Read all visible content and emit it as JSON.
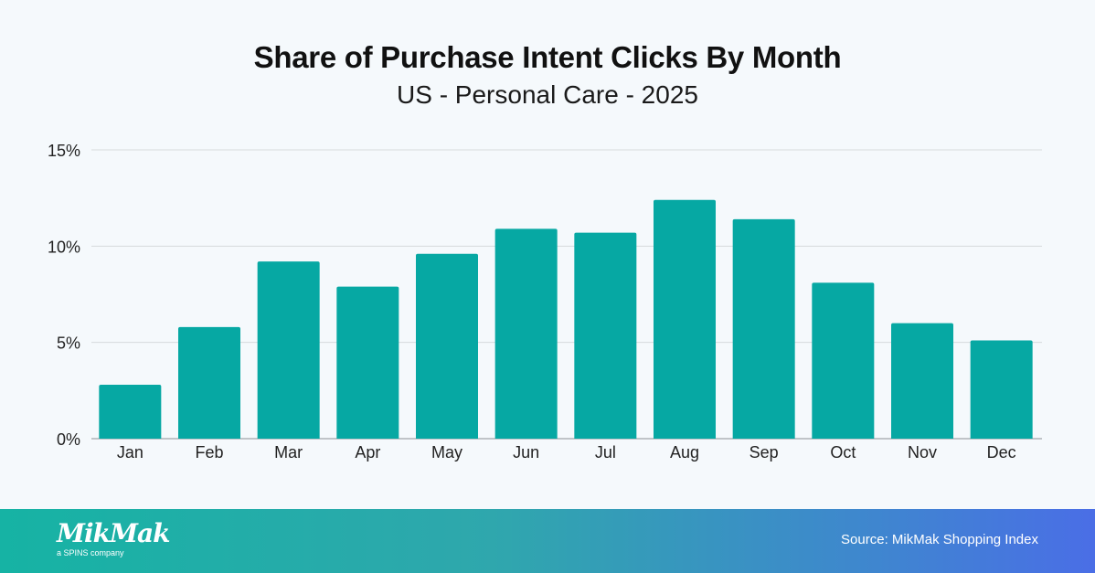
{
  "chart_data": {
    "type": "bar",
    "title": "Share of Purchase Intent Clicks By Month",
    "subtitle": "US - Personal Care - 2025",
    "categories": [
      "Jan",
      "Feb",
      "Mar",
      "Apr",
      "May",
      "Jun",
      "Jul",
      "Aug",
      "Sep",
      "Oct",
      "Nov",
      "Dec"
    ],
    "values": [
      2.8,
      5.8,
      9.2,
      7.9,
      9.6,
      10.9,
      10.7,
      12.4,
      11.4,
      8.1,
      6.0,
      5.1
    ],
    "ylim": [
      0,
      15
    ],
    "yticks": [
      0,
      5,
      10,
      15
    ],
    "ytick_labels": [
      "0%",
      "5%",
      "10%",
      "15%"
    ],
    "xlabel": "",
    "ylabel": "",
    "grid": true,
    "bar_color": "#06a8a3"
  },
  "footer": {
    "logo_text": "MikMak",
    "logo_tagline": "a SPINS company",
    "source": "Source: MikMak Shopping Index"
  }
}
